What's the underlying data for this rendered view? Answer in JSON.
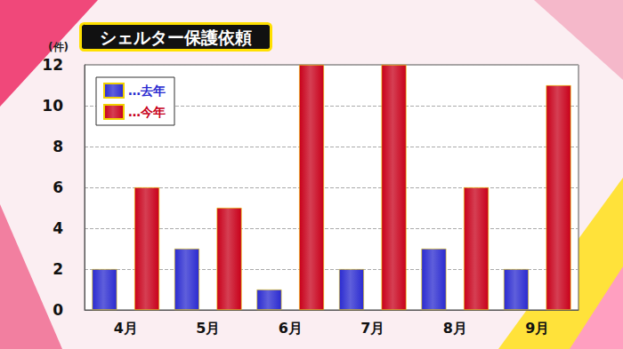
{
  "chart_data": {
    "type": "bar",
    "title": "シェルター保護依頼",
    "ylabel": "(件)",
    "categories": [
      "4月",
      "5月",
      "6月",
      "7月",
      "8月",
      "9月"
    ],
    "series": [
      {
        "name": "…去年",
        "color": "#2a2ad0",
        "values": [
          2,
          3,
          1,
          2,
          3,
          2
        ]
      },
      {
        "name": "…今年",
        "color": "#c8001a",
        "values": [
          6,
          5,
          12,
          12,
          6,
          11
        ]
      }
    ],
    "ylim": [
      0,
      12
    ],
    "yticks": [
      0,
      2,
      4,
      6,
      8,
      10,
      12
    ],
    "grid": true,
    "legend": "upper left"
  }
}
